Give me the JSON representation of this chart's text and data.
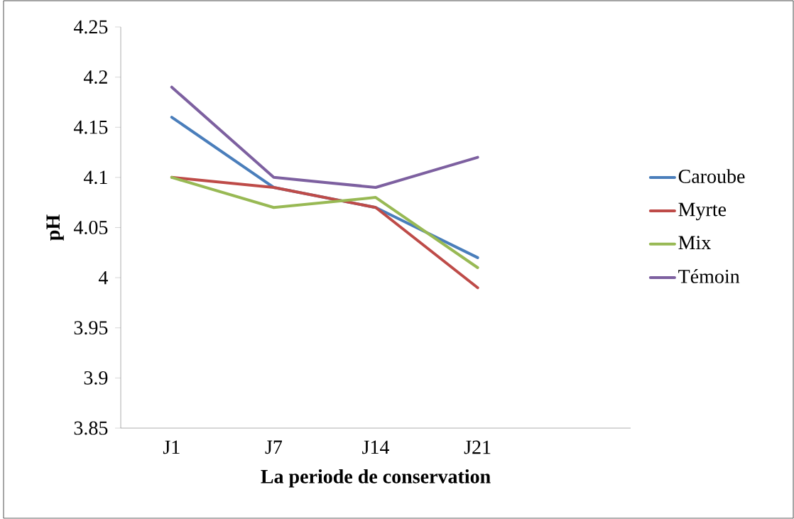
{
  "chart_data": {
    "type": "line",
    "xlabel": "La periode de conservation",
    "ylabel": "pH",
    "categories": [
      "J1",
      "J7",
      "J14",
      "J21"
    ],
    "series": [
      {
        "name": "Caroube",
        "color": "#4a7ebb",
        "values": [
          4.16,
          4.09,
          4.07,
          4.02
        ]
      },
      {
        "name": "Myrte",
        "color": "#be4b48",
        "values": [
          4.1,
          4.09,
          4.07,
          3.99
        ]
      },
      {
        "name": "Mix",
        "color": "#98b954",
        "values": [
          4.1,
          4.07,
          4.08,
          4.01
        ]
      },
      {
        "name": "Témoin",
        "color": "#7d60a0",
        "values": [
          4.19,
          4.1,
          4.09,
          4.12
        ]
      }
    ],
    "ylim": [
      3.85,
      4.25
    ],
    "yticks": [
      3.85,
      3.9,
      3.95,
      4,
      4.05,
      4.1,
      4.15,
      4.2,
      4.25
    ],
    "legend": "right",
    "grid": false,
    "marker": "none",
    "line_style": "solid"
  }
}
